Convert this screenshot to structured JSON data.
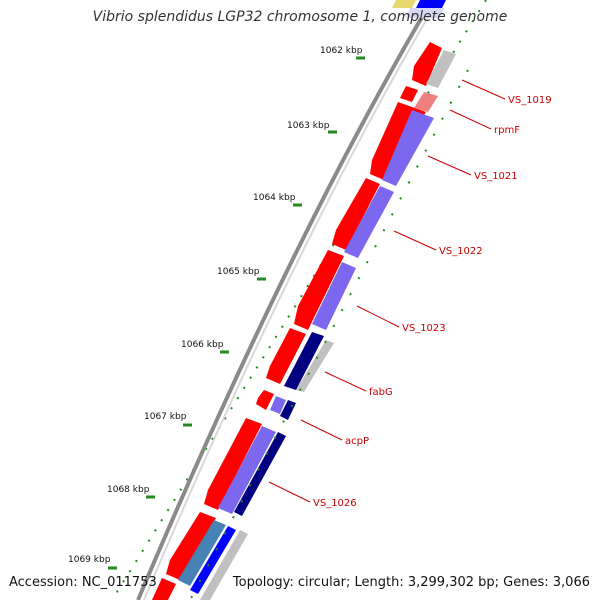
{
  "title": "Vibrio splendidus LGP32 chromosome 1, complete genome",
  "accession": "Accession: NC_011753",
  "topology": "Topology: circular; Length: 3,299,302 bp; Genes: 3,066",
  "kbp_labels": [
    "1062 kbp",
    "1063 kbp",
    "1064 kbp",
    "1065 kbp",
    "1066 kbp",
    "1067 kbp",
    "1068 kbp",
    "1069 kbp"
  ],
  "gene_labels": [
    "VS_1019",
    "rpmF",
    "VS_1021",
    "VS_1022",
    "VS_1023",
    "fabG",
    "acpP",
    "VS_1026"
  ],
  "colors": {
    "forward_gene": "#ff0000",
    "cds_track": "#7b68ee",
    "navy_track": "#000080",
    "grey_track": "#c0c0c0",
    "label": "#cc0000",
    "tick": "#228b22",
    "backbone": "#808080"
  }
}
